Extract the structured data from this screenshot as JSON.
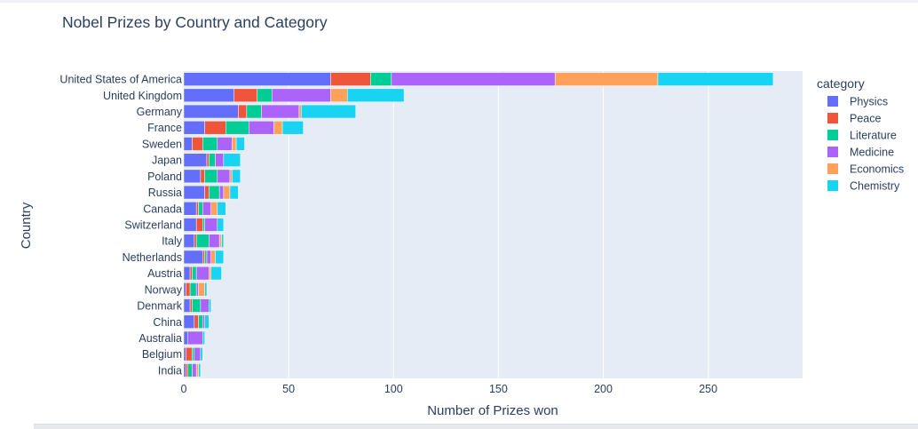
{
  "chart_data": {
    "type": "bar",
    "orientation": "horizontal",
    "stacked": true,
    "title": "Nobel Prizes by Country and Category",
    "xlabel": "Number of Prizes won",
    "ylabel": "Country",
    "xlim": [
      0,
      295
    ],
    "xticks": [
      0,
      50,
      100,
      150,
      200,
      250
    ],
    "grid": true,
    "legend_title": "category",
    "legend_position": "right",
    "categories": [
      "United States of America",
      "United Kingdom",
      "Germany",
      "France",
      "Sweden",
      "Japan",
      "Poland",
      "Russia",
      "Canada",
      "Switzerland",
      "Italy",
      "Netherlands",
      "Austria",
      "Norway",
      "Denmark",
      "China",
      "Australia",
      "Belgium",
      "India"
    ],
    "series": [
      {
        "name": "Physics",
        "color": "#636efa",
        "values": [
          70,
          24,
          26,
          10,
          4,
          11,
          8,
          10,
          6,
          6,
          5,
          9,
          3,
          1,
          3,
          5,
          2,
          1,
          1
        ]
      },
      {
        "name": "Peace",
        "color": "#ef553b",
        "values": [
          19,
          11,
          4,
          10,
          5,
          1,
          2,
          2,
          1,
          3,
          1,
          1,
          1,
          2,
          1,
          2,
          0,
          3,
          1
        ]
      },
      {
        "name": "Literature",
        "color": "#00cc96",
        "values": [
          10,
          7,
          7,
          11,
          7,
          3,
          6,
          5,
          2,
          1,
          6,
          1,
          2,
          3,
          4,
          2,
          0,
          1,
          2
        ]
      },
      {
        "name": "Medicine",
        "color": "#ab63fa",
        "values": [
          78,
          28,
          18,
          12,
          7,
          4,
          6,
          2,
          4,
          6,
          5,
          2,
          6,
          1,
          4,
          1,
          7,
          3,
          2
        ]
      },
      {
        "name": "Economics",
        "color": "#ffa15a",
        "values": [
          49,
          8,
          1,
          4,
          2,
          0,
          1,
          3,
          3,
          0,
          1,
          2,
          1,
          3,
          0,
          0,
          0,
          0,
          1
        ]
      },
      {
        "name": "Chemistry",
        "color": "#19d3f3",
        "values": [
          55,
          27,
          26,
          10,
          4,
          8,
          4,
          4,
          4,
          3,
          1,
          4,
          5,
          1,
          1,
          2,
          1,
          1,
          1
        ]
      }
    ]
  }
}
